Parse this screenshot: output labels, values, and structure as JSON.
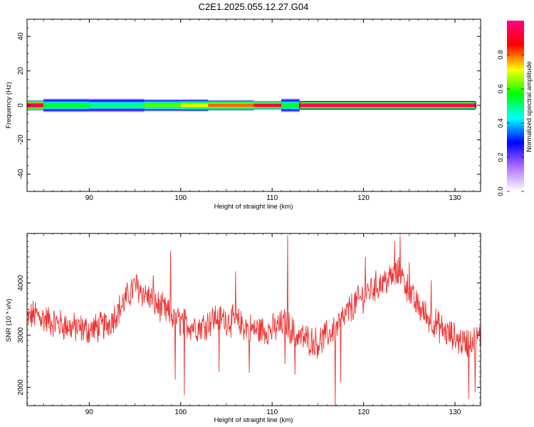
{
  "title": "C2E1.2025.055.12.27.G04",
  "chart_data": [
    {
      "type": "heatmap",
      "xlabel": "Height of straight line (km)",
      "ylabel": "Frequency (Hz)",
      "xlim": [
        83.2,
        132.8
      ],
      "ylim": [
        -50,
        50
      ],
      "x_ticks": [
        90,
        100,
        110,
        120,
        130
      ],
      "y_ticks": [
        -40,
        -20,
        0,
        20,
        40
      ],
      "grid": false,
      "colorbar": {
        "label": "Normalized spectral amplitude",
        "range": [
          0,
          1
        ],
        "ticks": [
          0.0,
          0.2,
          0.4,
          0.6,
          0.8
        ],
        "tick_labels": [
          "0.0",
          "0.2",
          "0.4",
          "0.6",
          "0.8"
        ],
        "colormap": "hsv",
        "stops": [
          "#ffffff",
          "#b070ff",
          "#0000ff",
          "#00ffff",
          "#00ff00",
          "#ffff00",
          "#ff0000",
          "#ff0080"
        ]
      },
      "ridge": {
        "frequency_hz": 0,
        "x_start": 83.2,
        "x_end": 132.3,
        "segments": [
          {
            "x0": 83.2,
            "x1": 85.0,
            "amplitude": 0.95,
            "spread_hz": 2.5
          },
          {
            "x0": 85.0,
            "x1": 90.0,
            "amplitude": 0.55,
            "spread_hz": 3.5
          },
          {
            "x0": 90.0,
            "x1": 96.0,
            "amplitude": 0.5,
            "spread_hz": 3.5
          },
          {
            "x0": 96.0,
            "x1": 100.0,
            "amplitude": 0.62,
            "spread_hz": 3.0
          },
          {
            "x0": 100.0,
            "x1": 103.0,
            "amplitude": 0.7,
            "spread_hz": 3.0
          },
          {
            "x0": 103.0,
            "x1": 108.0,
            "amplitude": 0.8,
            "spread_hz": 2.5
          },
          {
            "x0": 108.0,
            "x1": 111.0,
            "amplitude": 0.9,
            "spread_hz": 2.0
          },
          {
            "x0": 111.0,
            "x1": 113.0,
            "amplitude": 0.55,
            "spread_hz": 3.5
          },
          {
            "x0": 113.0,
            "x1": 132.3,
            "amplitude": 0.95,
            "spread_hz": 2.0
          }
        ]
      }
    },
    {
      "type": "line",
      "xlabel": "Height of straight line (km)",
      "ylabel": "SNR (10 * v/v)",
      "xlim": [
        83.2,
        132.8
      ],
      "ylim": [
        1650,
        4950
      ],
      "x_ticks": [
        90,
        100,
        110,
        120,
        130
      ],
      "y_ticks": [
        2000,
        3000,
        4000
      ],
      "grid": false,
      "series": [
        {
          "color": "#ee3333",
          "sample_step_km": 0.05,
          "trend_x": [
            83.2,
            84,
            86,
            88,
            90,
            92,
            93.5,
            95,
            96,
            98,
            100,
            102,
            104,
            106,
            108,
            110,
            111.5,
            112.5,
            115,
            117,
            119,
            121,
            122.5,
            124,
            125.5,
            127,
            129,
            131,
            132.8
          ],
          "trend_y": [
            3300,
            3400,
            3250,
            3150,
            3100,
            3200,
            3550,
            3950,
            3800,
            3500,
            3250,
            3150,
            3350,
            3250,
            3100,
            3100,
            3250,
            3000,
            2850,
            3150,
            3600,
            3900,
            4050,
            4200,
            3650,
            3350,
            3050,
            2850,
            2950
          ],
          "noise_amplitude": 260,
          "spikes": [
            {
              "x": 97.0,
              "y": 4150
            },
            {
              "x": 98.9,
              "y": 4620
            },
            {
              "x": 99.4,
              "y": 2150
            },
            {
              "x": 100.4,
              "y": 1850
            },
            {
              "x": 104.2,
              "y": 2300
            },
            {
              "x": 106.0,
              "y": 4220
            },
            {
              "x": 107.5,
              "y": 2280
            },
            {
              "x": 111.7,
              "y": 4920
            },
            {
              "x": 111.4,
              "y": 2450
            },
            {
              "x": 112.5,
              "y": 2250
            },
            {
              "x": 116.9,
              "y": 1660
            },
            {
              "x": 117.5,
              "y": 2100
            },
            {
              "x": 120.2,
              "y": 4500
            },
            {
              "x": 123.4,
              "y": 4800
            },
            {
              "x": 124.0,
              "y": 4900
            },
            {
              "x": 125.0,
              "y": 4400
            },
            {
              "x": 127.4,
              "y": 4050
            },
            {
              "x": 131.5,
              "y": 1780
            },
            {
              "x": 132.2,
              "y": 1900
            }
          ]
        }
      ]
    }
  ]
}
